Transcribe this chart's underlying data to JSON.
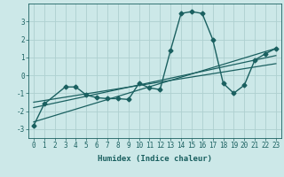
{
  "xlabel": "Humidex (Indice chaleur)",
  "background_color": "#cce8e8",
  "grid_color": "#aed0d0",
  "line_color": "#1a6060",
  "x_ticks": [
    0,
    1,
    2,
    3,
    4,
    5,
    6,
    7,
    8,
    9,
    10,
    11,
    12,
    13,
    14,
    15,
    16,
    17,
    18,
    19,
    20,
    21,
    22,
    23
  ],
  "ylim": [
    -3.5,
    4.0
  ],
  "xlim": [
    -0.5,
    23.5
  ],
  "series": [
    {
      "x": [
        0,
        1,
        3,
        4,
        5,
        6,
        7,
        8,
        9,
        10,
        11,
        12,
        13,
        14,
        15,
        16,
        17,
        18,
        19,
        20,
        21,
        22,
        23
      ],
      "y": [
        -2.8,
        -1.6,
        -0.65,
        -0.65,
        -1.1,
        -1.25,
        -1.3,
        -1.3,
        -1.35,
        -0.45,
        -0.7,
        -0.8,
        1.4,
        3.45,
        3.55,
        3.45,
        2.0,
        -0.45,
        -1.0,
        -0.55,
        0.85,
        1.2,
        1.5
      ],
      "marker": "D",
      "markersize": 2.5,
      "linewidth": 1.0
    },
    {
      "x": [
        0,
        23
      ],
      "y": [
        -2.6,
        1.5
      ],
      "marker": null,
      "linewidth": 0.9
    },
    {
      "x": [
        0,
        23
      ],
      "y": [
        -1.8,
        1.1
      ],
      "marker": null,
      "linewidth": 0.9
    },
    {
      "x": [
        0,
        23
      ],
      "y": [
        -1.5,
        0.65
      ],
      "marker": null,
      "linewidth": 0.9
    }
  ],
  "ytick_positions": [
    -3,
    -2,
    -1,
    0,
    1,
    2,
    3
  ],
  "ytick_labels": [
    "-3",
    "-2",
    "-1",
    "0",
    "1",
    "2",
    "3"
  ],
  "tick_fontsize": 5.5,
  "label_fontsize": 6.5
}
